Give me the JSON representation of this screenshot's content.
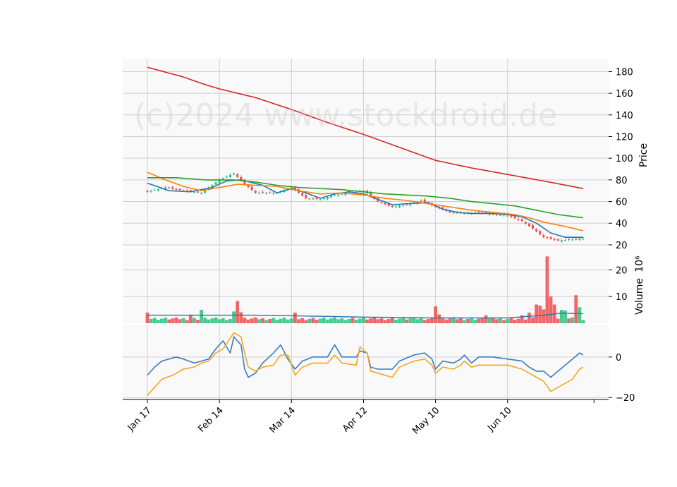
{
  "chart_data": {
    "type": "candlestick",
    "watermark": "(c)2024 www.stockdroid.de",
    "x_tick_labels": [
      "Jan 17",
      "Feb 14",
      "Mar 14",
      "Apr 12",
      "May 10",
      "Jun 10"
    ],
    "trading_days": 122,
    "x_tick_indices": [
      0,
      20,
      40,
      60,
      80,
      100
    ],
    "colors": {
      "up": "#26c281",
      "down": "#f04e4e",
      "ma_short": "#1f77b4",
      "ma_mid": "#ff7f0e",
      "ma_long": "#2ca02c",
      "ma_very_long": "#d62728",
      "osc_fast": "#3a7bbf",
      "osc_slow": "#f5a623",
      "grid": "#d0d0d0",
      "panel_bg": "#f9f9f9"
    },
    "price_panel": {
      "ylabel": "Price",
      "ylim": [
        18,
        192
      ],
      "yticks": [
        20,
        40,
        60,
        80,
        100,
        120,
        140,
        160,
        180
      ],
      "close_anchors": [
        [
          0,
          69
        ],
        [
          5,
          73
        ],
        [
          10,
          70
        ],
        [
          15,
          68
        ],
        [
          20,
          80
        ],
        [
          24,
          86
        ],
        [
          27,
          76
        ],
        [
          30,
          68
        ],
        [
          36,
          68
        ],
        [
          40,
          73
        ],
        [
          44,
          63
        ],
        [
          48,
          62
        ],
        [
          52,
          66
        ],
        [
          56,
          68
        ],
        [
          60,
          70
        ],
        [
          64,
          60
        ],
        [
          68,
          55
        ],
        [
          72,
          57
        ],
        [
          76,
          61
        ],
        [
          80,
          55
        ],
        [
          84,
          50
        ],
        [
          88,
          49
        ],
        [
          92,
          50
        ],
        [
          96,
          48
        ],
        [
          100,
          47
        ],
        [
          104,
          42
        ],
        [
          107,
          35
        ],
        [
          110,
          27
        ],
        [
          114,
          24
        ],
        [
          118,
          25
        ],
        [
          121,
          26
        ]
      ],
      "moving_averages": [
        {
          "key": "ma_short",
          "anchors": [
            [
              0,
              77
            ],
            [
              6,
              70
            ],
            [
              12,
              69
            ],
            [
              18,
              73
            ],
            [
              22,
              79
            ],
            [
              26,
              80
            ],
            [
              32,
              75
            ],
            [
              36,
              68
            ],
            [
              40,
              72
            ],
            [
              44,
              68
            ],
            [
              48,
              63
            ],
            [
              52,
              67
            ],
            [
              56,
              69
            ],
            [
              60,
              67
            ],
            [
              64,
              62
            ],
            [
              68,
              57
            ],
            [
              72,
              58
            ],
            [
              78,
              59
            ],
            [
              82,
              53
            ],
            [
              86,
              50
            ],
            [
              90,
              49
            ],
            [
              96,
              49
            ],
            [
              100,
              48
            ],
            [
              104,
              46
            ],
            [
              108,
              40
            ],
            [
              112,
              31
            ],
            [
              116,
              27
            ],
            [
              121,
              27
            ]
          ]
        },
        {
          "key": "ma_mid",
          "anchors": [
            [
              0,
              87
            ],
            [
              5,
              80
            ],
            [
              10,
              74
            ],
            [
              15,
              70
            ],
            [
              20,
              73
            ],
            [
              25,
              76
            ],
            [
              30,
              75
            ],
            [
              36,
              74
            ],
            [
              42,
              70
            ],
            [
              48,
              67
            ],
            [
              54,
              68
            ],
            [
              60,
              66
            ],
            [
              66,
              63
            ],
            [
              72,
              61
            ],
            [
              78,
              58
            ],
            [
              84,
              55
            ],
            [
              90,
              52
            ],
            [
              96,
              50
            ],
            [
              102,
              48
            ],
            [
              106,
              45
            ],
            [
              110,
              41
            ],
            [
              116,
              37
            ],
            [
              121,
              33
            ]
          ]
        },
        {
          "key": "ma_long",
          "anchors": [
            [
              0,
              82
            ],
            [
              8,
              82
            ],
            [
              16,
              80
            ],
            [
              24,
              80
            ],
            [
              30,
              78
            ],
            [
              36,
              75
            ],
            [
              42,
              73
            ],
            [
              48,
              72
            ],
            [
              54,
              71
            ],
            [
              60,
              69
            ],
            [
              66,
              67
            ],
            [
              72,
              66
            ],
            [
              78,
              65
            ],
            [
              84,
              63
            ],
            [
              90,
              60
            ],
            [
              96,
              58
            ],
            [
              102,
              56
            ],
            [
              108,
              52
            ],
            [
              114,
              48
            ],
            [
              121,
              45
            ]
          ]
        },
        {
          "key": "ma_very_long",
          "anchors": [
            [
              0,
              184
            ],
            [
              10,
              175
            ],
            [
              16,
              168
            ],
            [
              20,
              164
            ],
            [
              30,
              156
            ],
            [
              40,
              145
            ],
            [
              50,
              133
            ],
            [
              60,
              122
            ],
            [
              70,
              110
            ],
            [
              80,
              98
            ],
            [
              90,
              91
            ],
            [
              100,
              85
            ],
            [
              110,
              79
            ],
            [
              121,
              72
            ]
          ]
        }
      ]
    },
    "volume_panel": {
      "ylabel": "Volume",
      "exponent_label": "10⁶",
      "ylim": [
        0,
        28
      ],
      "yticks": [
        10,
        20
      ],
      "avg_anchors": [
        [
          0,
          3
        ],
        [
          20,
          3
        ],
        [
          30,
          3
        ],
        [
          40,
          2.8
        ],
        [
          60,
          2.3
        ],
        [
          80,
          2.0
        ],
        [
          100,
          2.0
        ],
        [
          110,
          3.0
        ],
        [
          115,
          3.8
        ],
        [
          121,
          3.6
        ]
      ],
      "spikes": [
        [
          0,
          4
        ],
        [
          12,
          3.2
        ],
        [
          15,
          5
        ],
        [
          24,
          4.4
        ],
        [
          25,
          8.3
        ],
        [
          26,
          4.1
        ],
        [
          41,
          4
        ],
        [
          80,
          6.3
        ],
        [
          81,
          3.3
        ],
        [
          94,
          3.0
        ],
        [
          104,
          3.0
        ],
        [
          106,
          4.0
        ],
        [
          108,
          7.0
        ],
        [
          109,
          6.6
        ],
        [
          110,
          5.2
        ],
        [
          111,
          25
        ],
        [
          112,
          10
        ],
        [
          113,
          7
        ],
        [
          115,
          5
        ],
        [
          116,
          4.8
        ],
        [
          119,
          10.5
        ],
        [
          120,
          6.0
        ]
      ]
    },
    "oscillator_panel": {
      "ylim": [
        -21,
        16
      ],
      "yticks": [
        -20,
        0
      ],
      "series": [
        {
          "key": "osc_fast",
          "anchors": [
            [
              0,
              -9
            ],
            [
              2,
              -5
            ],
            [
              4,
              -2
            ],
            [
              8,
              0
            ],
            [
              10,
              -1
            ],
            [
              13,
              -3
            ],
            [
              15,
              -2
            ],
            [
              17,
              -1
            ],
            [
              19,
              4
            ],
            [
              21,
              8
            ],
            [
              23,
              2
            ],
            [
              24,
              10
            ],
            [
              26,
              6
            ],
            [
              27,
              -6
            ],
            [
              28,
              -10
            ],
            [
              30,
              -8
            ],
            [
              32,
              -3
            ],
            [
              35,
              2
            ],
            [
              37,
              6
            ],
            [
              39,
              -1
            ],
            [
              41,
              -6
            ],
            [
              43,
              -2
            ],
            [
              46,
              0
            ],
            [
              50,
              0
            ],
            [
              52,
              6
            ],
            [
              54,
              0
            ],
            [
              58,
              0
            ],
            [
              59,
              3
            ],
            [
              61,
              2
            ],
            [
              62,
              -5
            ],
            [
              64,
              -6
            ],
            [
              68,
              -6
            ],
            [
              70,
              -2
            ],
            [
              74,
              1
            ],
            [
              77,
              2
            ],
            [
              79,
              -1
            ],
            [
              80,
              -6
            ],
            [
              82,
              -2
            ],
            [
              85,
              -3
            ],
            [
              87,
              -1
            ],
            [
              88,
              1
            ],
            [
              90,
              -3
            ],
            [
              92,
              0
            ],
            [
              96,
              0
            ],
            [
              100,
              -1
            ],
            [
              104,
              -2
            ],
            [
              106,
              -5
            ],
            [
              108,
              -7
            ],
            [
              110,
              -7
            ],
            [
              112,
              -10
            ],
            [
              114,
              -7
            ],
            [
              116,
              -4
            ],
            [
              118,
              -1
            ],
            [
              120,
              2
            ],
            [
              121,
              1
            ]
          ]
        },
        {
          "key": "osc_slow",
          "anchors": [
            [
              0,
              -19
            ],
            [
              2,
              -15
            ],
            [
              4,
              -11
            ],
            [
              7,
              -9
            ],
            [
              10,
              -6
            ],
            [
              13,
              -5
            ],
            [
              15,
              -3
            ],
            [
              17,
              -2
            ],
            [
              19,
              2
            ],
            [
              21,
              4
            ],
            [
              24,
              12
            ],
            [
              26,
              10
            ],
            [
              27,
              2
            ],
            [
              28,
              -5
            ],
            [
              30,
              -7
            ],
            [
              32,
              -5
            ],
            [
              35,
              -4
            ],
            [
              37,
              1
            ],
            [
              39,
              1
            ],
            [
              41,
              -9
            ],
            [
              43,
              -5
            ],
            [
              46,
              -3
            ],
            [
              50,
              -3
            ],
            [
              52,
              1
            ],
            [
              54,
              -3
            ],
            [
              58,
              -4
            ],
            [
              59,
              5
            ],
            [
              61,
              2
            ],
            [
              62,
              -7
            ],
            [
              64,
              -8
            ],
            [
              68,
              -10
            ],
            [
              70,
              -5
            ],
            [
              74,
              -2
            ],
            [
              77,
              -1
            ],
            [
              79,
              -4
            ],
            [
              80,
              -8
            ],
            [
              82,
              -5
            ],
            [
              85,
              -6
            ],
            [
              87,
              -4
            ],
            [
              88,
              -2
            ],
            [
              90,
              -5
            ],
            [
              92,
              -4
            ],
            [
              96,
              -4
            ],
            [
              100,
              -4
            ],
            [
              104,
              -6
            ],
            [
              106,
              -8
            ],
            [
              108,
              -10
            ],
            [
              110,
              -12
            ],
            [
              112,
              -17
            ],
            [
              114,
              -15
            ],
            [
              116,
              -13
            ],
            [
              118,
              -11
            ],
            [
              120,
              -6
            ],
            [
              121,
              -5
            ]
          ]
        }
      ]
    }
  }
}
